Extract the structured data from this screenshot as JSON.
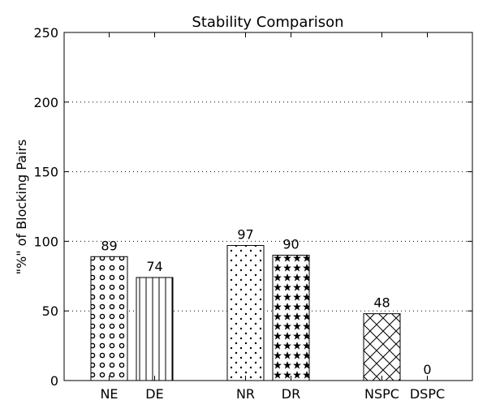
{
  "chart_data": {
    "type": "bar",
    "title": "Stability Comparison",
    "xlabel": "",
    "ylabel": "\"%\" of Blocking Pairs",
    "ylim": [
      0,
      250
    ],
    "yticks": [
      0,
      50,
      100,
      150,
      200,
      250
    ],
    "grid": "y-dotted",
    "categories": [
      "NE",
      "DE",
      "NR",
      "DR",
      "NSPC",
      "DSPC"
    ],
    "values": [
      89,
      74,
      97,
      90,
      48,
      0
    ],
    "patterns": [
      "small-circles",
      "vertical-lines",
      "dots",
      "stars",
      "crosshatch",
      "none"
    ],
    "data_labels": [
      "89",
      "74",
      "97",
      "90",
      "48",
      "0"
    ]
  }
}
